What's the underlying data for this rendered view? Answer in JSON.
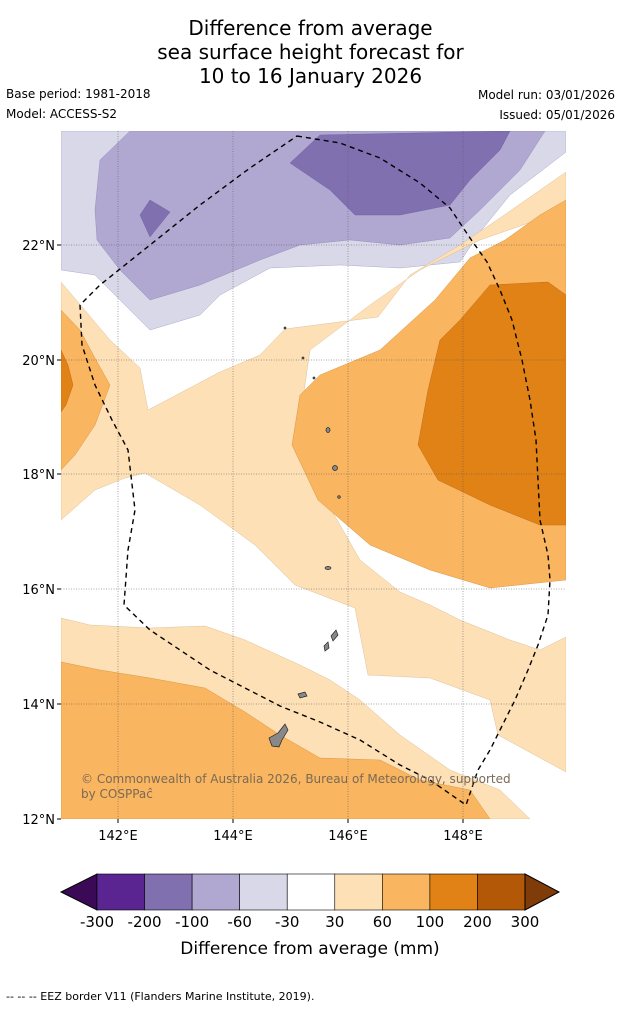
{
  "title": {
    "line1": "Difference from average",
    "line2": "sea surface height forecast for",
    "line3": "10 to 16 January 2026"
  },
  "meta": {
    "base_period": "Base period: 1981-2018",
    "model": "Model: ACCESS-S2",
    "model_run": "Model run: 03/01/2026",
    "issued": "Issued: 05/01/2026"
  },
  "map": {
    "lat_ticks": [
      "22°N",
      "20°N",
      "18°N",
      "16°N",
      "14°N",
      "12°N"
    ],
    "lon_ticks": [
      "142°E",
      "144°E",
      "146°E",
      "148°E"
    ],
    "copyright_line1": "© Commonwealth of Australia 2026, Bureau of Meteorology, supported",
    "copyright_line2": "by COSPPaĉ"
  },
  "colorbar": {
    "labels": [
      "-300",
      "-200",
      "-100",
      "-60",
      "-30",
      "30",
      "60",
      "100",
      "200",
      "300"
    ],
    "colors": [
      "#3b0a57",
      "#5a2590",
      "#8070b0",
      "#b0a8d0",
      "#d8d8e8",
      "#ffffff",
      "#fde0b6",
      "#f9b55f",
      "#e08216",
      "#b35806",
      "#7f3b08"
    ],
    "title": "Difference from average (mm)"
  },
  "footer": {
    "legend_text": "--  --  -- EEZ border V11 (Flanders Marine Institute, 2019)."
  },
  "colors": {
    "level_neg100": "#b0a8d0",
    "level_neg60": "#d8d8e8",
    "level_neg200": "#8070b0",
    "level_30": "#fde0b6",
    "level_60": "#f9b55f",
    "level_100": "#e08216"
  }
}
